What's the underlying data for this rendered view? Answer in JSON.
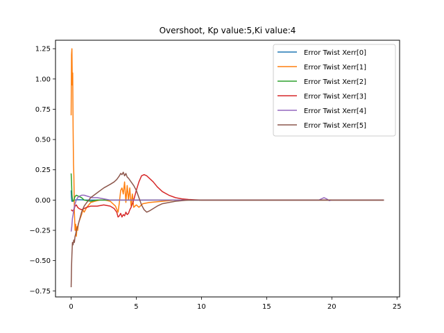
{
  "chart_data": {
    "type": "line",
    "title": "Overshoot, Kp value:5,Ki value:4",
    "xlabel": "",
    "ylabel": "",
    "xlim": [
      -1.2,
      25.2
    ],
    "ylim": [
      -0.8,
      1.32
    ],
    "xticks": [
      0,
      5,
      10,
      15,
      20,
      25
    ],
    "xtick_labels": [
      "0",
      "5",
      "10",
      "15",
      "20",
      "25"
    ],
    "yticks": [
      -0.75,
      -0.5,
      -0.25,
      0.0,
      0.25,
      0.5,
      0.75,
      1.0,
      1.25
    ],
    "ytick_labels": [
      "−0.75",
      "−0.50",
      "−0.25",
      "0.00",
      "0.25",
      "0.50",
      "0.75",
      "1.00",
      "1.25"
    ],
    "grid": false,
    "legend_position": "upper right",
    "series": [
      {
        "name": "Error Twist Xerr[0]",
        "color": "#1f77b4",
        "x": [
          0,
          0.02,
          0.05,
          0.1,
          0.15,
          0.2,
          0.3,
          0.4,
          0.6,
          0.8,
          1.0,
          1.5,
          2,
          3,
          4,
          5,
          6,
          8,
          10,
          15,
          20,
          24
        ],
        "y": [
          0.08,
          0.03,
          -0.01,
          -0.01,
          -0.01,
          -0.005,
          0.0,
          0.002,
          0.003,
          0.002,
          0.001,
          0.0,
          0.0,
          0.0,
          0.0,
          0.0,
          0.0,
          0.0,
          0.0,
          0.0,
          0.0,
          0.0
        ]
      },
      {
        "name": "Error Twist Xerr[1]",
        "color": "#ff7f0e",
        "x": [
          0,
          0.03,
          0.06,
          0.09,
          0.12,
          0.15,
          0.18,
          0.21,
          0.25,
          0.3,
          0.35,
          0.4,
          0.45,
          0.5,
          0.55,
          0.6,
          0.7,
          0.8,
          0.9,
          1.0,
          1.2,
          1.5,
          1.8,
          2.2,
          2.6,
          3.0,
          3.4,
          3.6,
          3.7,
          3.8,
          3.9,
          4.0,
          4.1,
          4.2,
          4.3,
          4.4,
          4.5,
          4.6,
          4.7,
          4.8,
          5.0,
          5.2,
          5.5,
          6.0,
          7.0,
          8.0,
          10.0,
          12.0,
          15.0,
          20.0,
          24.0
        ],
        "y": [
          0.7,
          1.2,
          1.25,
          0.95,
          1.05,
          0.6,
          0.3,
          0.2,
          -0.1,
          -0.25,
          -0.2,
          -0.3,
          -0.22,
          -0.25,
          -0.2,
          -0.18,
          -0.15,
          -0.12,
          -0.08,
          -0.1,
          -0.06,
          -0.02,
          -0.01,
          0.0,
          0.0,
          -0.01,
          -0.05,
          -0.1,
          -0.02,
          0.08,
          0.1,
          0.05,
          0.15,
          -0.02,
          0.12,
          0.0,
          0.1,
          -0.05,
          0.05,
          -0.06,
          -0.04,
          -0.06,
          -0.03,
          -0.02,
          -0.01,
          0.0,
          0.0,
          0.0,
          0.0,
          0.0,
          0.0
        ]
      },
      {
        "name": "Error Twist Xerr[2]",
        "color": "#2ca02c",
        "x": [
          0,
          0.03,
          0.06,
          0.1,
          0.15,
          0.2,
          0.3,
          0.4,
          0.6,
          0.8,
          1.0,
          1.5,
          2.0,
          3.0,
          4.0,
          5.0,
          8.0,
          12.0,
          24.0
        ],
        "y": [
          0.22,
          0.15,
          0.05,
          0.0,
          -0.01,
          0.0,
          0.03,
          0.04,
          0.03,
          0.02,
          0.0,
          -0.01,
          0.0,
          0.0,
          0.0,
          0.0,
          0.0,
          0.0,
          0.0
        ]
      },
      {
        "name": "Error Twist Xerr[3]",
        "color": "#d62728",
        "x": [
          0,
          0.1,
          0.2,
          0.3,
          0.4,
          0.5,
          0.6,
          0.8,
          1.0,
          1.2,
          1.5,
          2.0,
          2.5,
          3.0,
          3.3,
          3.5,
          3.6,
          3.7,
          3.8,
          3.9,
          4.0,
          4.1,
          4.2,
          4.3,
          4.4,
          4.5,
          4.6,
          4.8,
          5.0,
          5.2,
          5.4,
          5.6,
          5.8,
          6.0,
          6.3,
          6.6,
          7.0,
          7.5,
          8.0,
          8.5,
          9.0,
          9.5,
          10.0,
          11.0,
          12.0,
          15.0,
          20.0,
          24.0
        ],
        "y": [
          -0.08,
          -0.09,
          -0.08,
          -0.05,
          -0.04,
          -0.06,
          -0.07,
          -0.08,
          -0.07,
          -0.06,
          -0.05,
          -0.05,
          -0.04,
          -0.05,
          -0.07,
          -0.1,
          -0.14,
          -0.13,
          -0.11,
          -0.14,
          -0.12,
          -0.13,
          -0.1,
          -0.12,
          -0.11,
          -0.08,
          -0.06,
          0.0,
          0.08,
          0.15,
          0.2,
          0.21,
          0.2,
          0.18,
          0.15,
          0.11,
          0.07,
          0.04,
          0.02,
          0.01,
          0.005,
          0.002,
          0.0,
          0.0,
          0.0,
          0.0,
          0.0,
          0.0
        ]
      },
      {
        "name": "Error Twist Xerr[4]",
        "color": "#9467bd",
        "x": [
          0,
          0.05,
          0.1,
          0.15,
          0.2,
          0.3,
          0.4,
          0.5,
          0.6,
          0.8,
          1.0,
          1.3,
          1.6,
          2.0,
          2.5,
          3.0,
          4.0,
          5.0,
          6.0,
          8.0,
          10.0,
          15.0,
          19.0,
          19.2,
          19.4,
          19.6,
          19.8,
          20.0,
          24.0
        ],
        "y": [
          -0.26,
          -0.22,
          -0.15,
          -0.12,
          -0.08,
          -0.03,
          0.0,
          0.02,
          0.03,
          0.04,
          0.04,
          0.03,
          0.02,
          0.02,
          0.01,
          0.0,
          0.0,
          0.0,
          0.0,
          0.0,
          0.0,
          0.0,
          0.0,
          0.01,
          0.02,
          0.01,
          -0.005,
          0.0,
          0.0
        ]
      },
      {
        "name": "Error Twist Xerr[5]",
        "color": "#8c564b",
        "x": [
          0,
          0.03,
          0.06,
          0.1,
          0.15,
          0.2,
          0.25,
          0.3,
          0.35,
          0.4,
          0.5,
          0.6,
          0.7,
          0.8,
          1.0,
          1.2,
          1.5,
          2.0,
          2.5,
          3.0,
          3.3,
          3.5,
          3.7,
          3.8,
          3.9,
          4.0,
          4.1,
          4.2,
          4.3,
          4.4,
          4.6,
          4.8,
          5.0,
          5.2,
          5.4,
          5.6,
          5.8,
          6.0,
          6.3,
          6.6,
          7.0,
          7.5,
          8.0,
          9.0,
          10.0,
          12.0,
          15.0,
          20.0,
          24.0
        ],
        "y": [
          -0.72,
          -0.55,
          -0.45,
          -0.35,
          -0.37,
          -0.33,
          -0.35,
          -0.3,
          -0.28,
          -0.25,
          -0.22,
          -0.18,
          -0.14,
          -0.1,
          -0.05,
          -0.02,
          0.02,
          0.06,
          0.1,
          0.13,
          0.15,
          0.17,
          0.2,
          0.22,
          0.21,
          0.23,
          0.2,
          0.22,
          0.19,
          0.18,
          0.15,
          0.12,
          0.08,
          0.02,
          -0.04,
          -0.08,
          -0.1,
          -0.09,
          -0.07,
          -0.05,
          -0.03,
          -0.02,
          -0.01,
          0.0,
          0.0,
          0.0,
          0.0,
          0.0,
          0.0
        ]
      }
    ]
  }
}
